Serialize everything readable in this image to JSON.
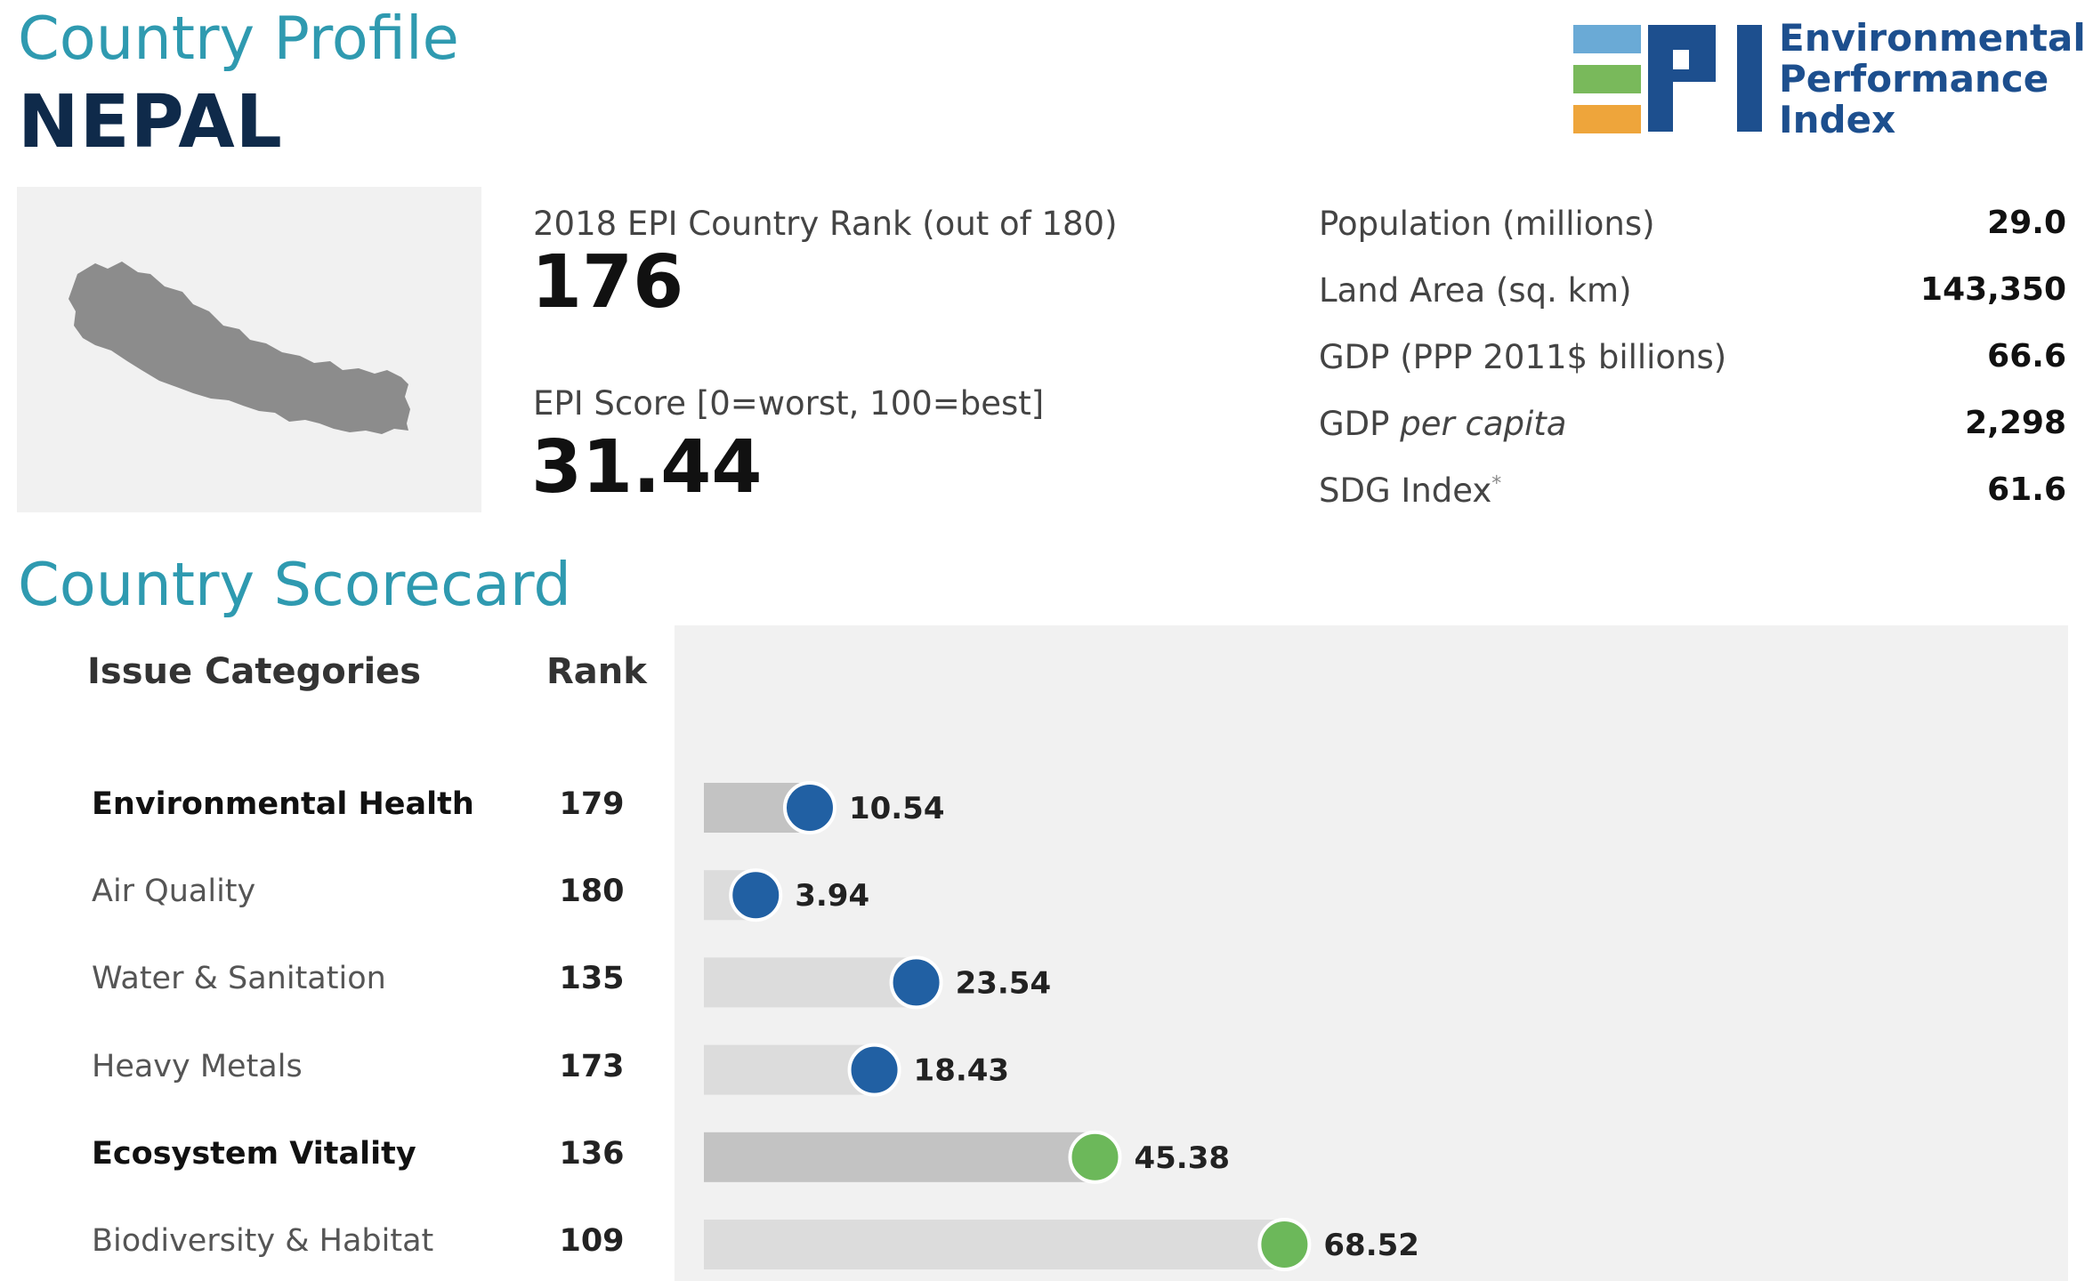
{
  "header": {
    "profile_label": "Country Profile",
    "country_name": "NEPAL"
  },
  "logo": {
    "line1": "Environmental",
    "line2": "Performance",
    "line3": "Index",
    "letters": "EPI",
    "colors": {
      "blue": "#6aaad6",
      "green": "#79b95b",
      "orange": "#eea53b",
      "navy": "#1d4f8e"
    }
  },
  "map": {
    "icon": "nepal-map-icon",
    "fill": "#8c8c8c"
  },
  "rank": {
    "label": "2018 EPI Country Rank (out of 180)",
    "value": "176"
  },
  "score": {
    "label": "EPI Score [0=worst, 100=best]",
    "value": "31.44"
  },
  "facts": [
    {
      "label": "Population (millions)",
      "value": "29.0"
    },
    {
      "label": "Land Area (sq. km)",
      "value": "143,350"
    },
    {
      "label": "GDP (PPP 2011$ billions)",
      "value": "66.6"
    },
    {
      "label_prefix": "GDP ",
      "label_italic": "per capita",
      "value": "2,298"
    },
    {
      "label": "SDG Index",
      "label_mark": "*",
      "value": "61.6"
    }
  ],
  "scorecard": {
    "title": "Country Scorecard",
    "col_categories": "Issue Categories",
    "col_rank": "Rank"
  },
  "chart_data": {
    "type": "bar",
    "xlim": [
      0,
      100
    ],
    "categories": [
      "Environmental Health",
      "Air Quality",
      "Water & Sanitation",
      "Heavy Metals",
      "Ecosystem Vitality",
      "Biodiversity & Habitat"
    ],
    "ranks": [
      "179",
      "180",
      "135",
      "173",
      "136",
      "109"
    ],
    "values": [
      10.54,
      3.94,
      23.54,
      18.43,
      45.38,
      68.52
    ],
    "value_labels": [
      "10.54",
      "3.94",
      "23.54",
      "18.43",
      "45.38",
      "68.52"
    ],
    "bold": [
      true,
      false,
      false,
      false,
      true,
      false
    ],
    "dot_colors": [
      "#2160a3",
      "#2160a3",
      "#2160a3",
      "#2160a3",
      "#6cb85a",
      "#6cb85a"
    ],
    "bar_colors": {
      "aggregate": "#c3c3c3",
      "issue": "#dcdcdc"
    }
  }
}
